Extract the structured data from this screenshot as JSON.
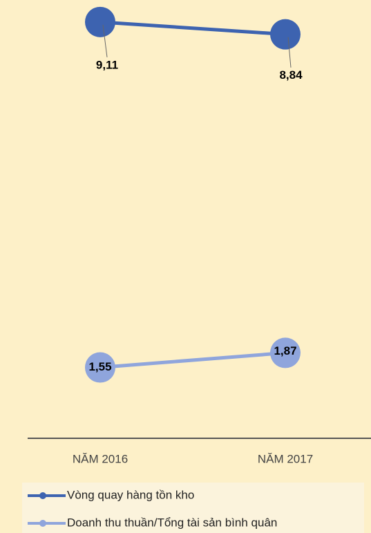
{
  "chart_data": {
    "type": "line",
    "categories": [
      "NĂM 2016",
      "NĂM 2017"
    ],
    "series": [
      {
        "name": "Vòng quay hàng tồn kho",
        "color": "#3d63b0",
        "values": [
          9.11,
          8.84
        ],
        "value_labels": [
          "9,11",
          "8,84"
        ]
      },
      {
        "name": "Doanh thu thuần/Tổng tài sản bình quân",
        "color": "#8fa5dc",
        "values": [
          1.55,
          1.87
        ],
        "value_labels": [
          "1,55",
          "1,87"
        ]
      }
    ],
    "ylim": [
      0,
      10
    ]
  }
}
